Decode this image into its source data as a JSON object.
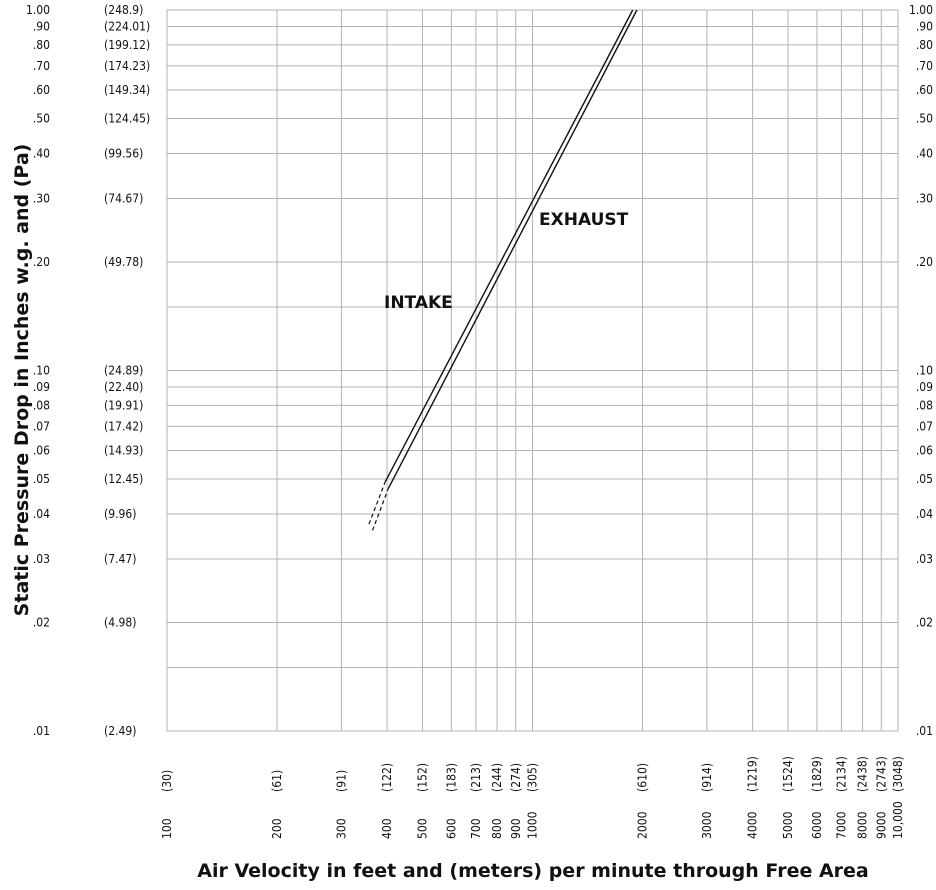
{
  "chart_data": {
    "type": "line",
    "xlabel": "Air Velocity in feet and (meters) per minute through Free Area",
    "ylabel": "Static Pressure Drop in Inches w.g. and (Pa)",
    "x_scale": "log",
    "y_scale": "log",
    "xlim": [
      100,
      10000
    ],
    "ylim": [
      0.01,
      1.0
    ],
    "grid": true,
    "x_gridlines": [
      100,
      200,
      300,
      400,
      500,
      600,
      700,
      800,
      900,
      1000,
      2000,
      3000,
      4000,
      5000,
      6000,
      7000,
      8000,
      9000,
      10000
    ],
    "y_gridlines": [
      0.01,
      0.015,
      0.02,
      0.03,
      0.04,
      0.05,
      0.06,
      0.07,
      0.08,
      0.09,
      0.1,
      0.15,
      0.2,
      0.3,
      0.4,
      0.5,
      0.6,
      0.7,
      0.8,
      0.9,
      1.0
    ],
    "x_ticks": [
      {
        "value": 100,
        "label": "100",
        "metric": "(30)"
      },
      {
        "value": 200,
        "label": "200",
        "metric": "(61)"
      },
      {
        "value": 300,
        "label": "300",
        "metric": "(91)"
      },
      {
        "value": 400,
        "label": "400",
        "metric": "(122)"
      },
      {
        "value": 500,
        "label": "500",
        "metric": "(152)"
      },
      {
        "value": 600,
        "label": "600",
        "metric": "(183)"
      },
      {
        "value": 700,
        "label": "700",
        "metric": "(213)"
      },
      {
        "value": 800,
        "label": "800",
        "metric": "(244)"
      },
      {
        "value": 900,
        "label": "900",
        "metric": "(274)"
      },
      {
        "value": 1000,
        "label": "1000",
        "metric": "(305)"
      },
      {
        "value": 2000,
        "label": "2000",
        "metric": "(610)"
      },
      {
        "value": 3000,
        "label": "3000",
        "metric": "(914)"
      },
      {
        "value": 4000,
        "label": "4000",
        "metric": "(1219)"
      },
      {
        "value": 5000,
        "label": "5000",
        "metric": "(1524)"
      },
      {
        "value": 6000,
        "label": "6000",
        "metric": "(1829)"
      },
      {
        "value": 7000,
        "label": "7000",
        "metric": "(2134)"
      },
      {
        "value": 8000,
        "label": "8000",
        "metric": "(2438)"
      },
      {
        "value": 9000,
        "label": "9000",
        "metric": "(2743)"
      },
      {
        "value": 10000,
        "label": "10,000",
        "metric": "(3048)"
      }
    ],
    "y_ticks": [
      {
        "value": 1.0,
        "label": "1.00",
        "metric": "(248.9)"
      },
      {
        "value": 0.9,
        "label": ".90",
        "metric": "(224.01)"
      },
      {
        "value": 0.8,
        "label": ".80",
        "metric": "(199.12)"
      },
      {
        "value": 0.7,
        "label": ".70",
        "metric": "(174.23)"
      },
      {
        "value": 0.6,
        "label": ".60",
        "metric": "(149.34)"
      },
      {
        "value": 0.5,
        "label": ".50",
        "metric": "(124.45)"
      },
      {
        "value": 0.4,
        "label": ".40",
        "metric": "(99.56)"
      },
      {
        "value": 0.3,
        "label": ".30",
        "metric": "(74.67)"
      },
      {
        "value": 0.2,
        "label": ".20",
        "metric": "(49.78)"
      },
      {
        "value": 0.1,
        "label": ".10",
        "metric": "(24.89)"
      },
      {
        "value": 0.09,
        "label": ".09",
        "metric": "(22.40)"
      },
      {
        "value": 0.08,
        "label": ".08",
        "metric": "(19.91)"
      },
      {
        "value": 0.07,
        "label": ".07",
        "metric": "(17.42)"
      },
      {
        "value": 0.06,
        "label": ".06",
        "metric": "(14.93)"
      },
      {
        "value": 0.05,
        "label": ".05",
        "metric": "(12.45)"
      },
      {
        "value": 0.04,
        "label": ".04",
        "metric": "(9.96)"
      },
      {
        "value": 0.03,
        "label": ".03",
        "metric": "(7.47)"
      },
      {
        "value": 0.02,
        "label": ".02",
        "metric": "(4.98)"
      },
      {
        "value": 0.01,
        "label": ".01",
        "metric": "(2.49)"
      }
    ],
    "series": [
      {
        "name": "INTAKE",
        "solid": [
          {
            "x": 395,
            "y": 0.049
          },
          {
            "x": 1880,
            "y": 1.0
          }
        ],
        "dashed": [
          {
            "x": 357,
            "y": 0.0375
          },
          {
            "x": 395,
            "y": 0.049
          }
        ]
      },
      {
        "name": "EXHAUST",
        "solid": [
          {
            "x": 403,
            "y": 0.047
          },
          {
            "x": 1930,
            "y": 1.0
          }
        ],
        "dashed": [
          {
            "x": 365,
            "y": 0.036
          },
          {
            "x": 403,
            "y": 0.047
          }
        ]
      }
    ]
  },
  "colors": {
    "grid": "#b3b3b3",
    "line": "#111111",
    "text": "#111111"
  }
}
